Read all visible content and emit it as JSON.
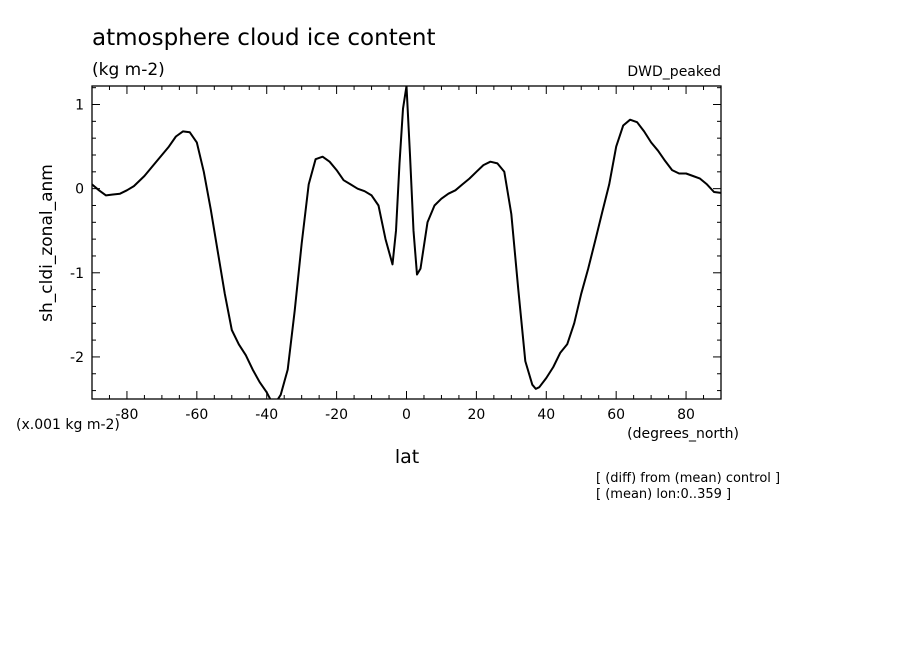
{
  "chart_data": {
    "type": "line",
    "title": "atmosphere cloud ice content",
    "units": "(kg m-2)",
    "dataset_label": "DWD_peaked",
    "ylabel": "sh_cldi_zonal_anm",
    "xlabel": "lat",
    "x_units": "(degrees_north)",
    "y_scale_note": "(x.001 kg m-2)",
    "notes": [
      "[ (diff) from (mean) control ]",
      "[ (mean) lon:0..359 ]"
    ],
    "xlim": [
      -90,
      90
    ],
    "ylim": [
      -2.5,
      1.22
    ],
    "x_ticks": [
      -80,
      -60,
      -40,
      -20,
      0,
      20,
      40,
      60,
      80
    ],
    "y_ticks": [
      -2,
      -1,
      0,
      1
    ],
    "grid": false,
    "series": [
      {
        "x": [
          -90,
          -88,
          -86,
          -84,
          -82,
          -80,
          -78,
          -75,
          -72,
          -68,
          -66,
          -64,
          -62,
          -60,
          -58,
          -56,
          -54,
          -52,
          -50,
          -48,
          -46,
          -44,
          -42,
          -40,
          -38,
          -36,
          -34,
          -32,
          -30,
          -28,
          -26,
          -24,
          -22,
          -20,
          -18,
          -16,
          -14,
          -12,
          -10,
          -8,
          -6,
          -4,
          -3,
          -2,
          -1,
          0,
          1,
          2,
          3,
          4,
          6,
          8,
          10,
          12,
          14,
          16,
          18,
          20,
          22,
          24,
          26,
          28,
          30,
          32,
          34,
          36,
          37,
          38,
          40,
          42,
          44,
          46,
          48,
          50,
          52,
          54,
          56,
          58,
          60,
          62,
          64,
          66,
          68,
          70,
          72,
          74,
          76,
          78,
          80,
          82,
          84,
          86,
          88,
          90
        ],
        "y": [
          0.05,
          -0.02,
          -0.08,
          -0.07,
          -0.06,
          -0.02,
          0.03,
          0.15,
          0.3,
          0.5,
          0.62,
          0.68,
          0.67,
          0.55,
          0.2,
          -0.25,
          -0.75,
          -1.25,
          -1.68,
          -1.85,
          -1.98,
          -2.15,
          -2.3,
          -2.42,
          -2.58,
          -2.45,
          -2.15,
          -1.45,
          -0.65,
          0.05,
          0.35,
          0.38,
          0.32,
          0.22,
          0.1,
          0.05,
          0.0,
          -0.03,
          -0.08,
          -0.2,
          -0.6,
          -0.9,
          -0.5,
          0.3,
          0.95,
          1.22,
          0.4,
          -0.5,
          -1.02,
          -0.95,
          -0.4,
          -0.2,
          -0.12,
          -0.06,
          -0.02,
          0.05,
          0.12,
          0.2,
          0.28,
          0.32,
          0.3,
          0.2,
          -0.3,
          -1.2,
          -2.05,
          -2.33,
          -2.38,
          -2.36,
          -2.25,
          -2.12,
          -1.95,
          -1.85,
          -1.6,
          -1.25,
          -0.95,
          -0.62,
          -0.28,
          0.05,
          0.5,
          0.75,
          0.82,
          0.79,
          0.68,
          0.55,
          0.45,
          0.33,
          0.22,
          0.18,
          0.18,
          0.15,
          0.12,
          0.05,
          -0.04,
          -0.05
        ]
      }
    ]
  }
}
